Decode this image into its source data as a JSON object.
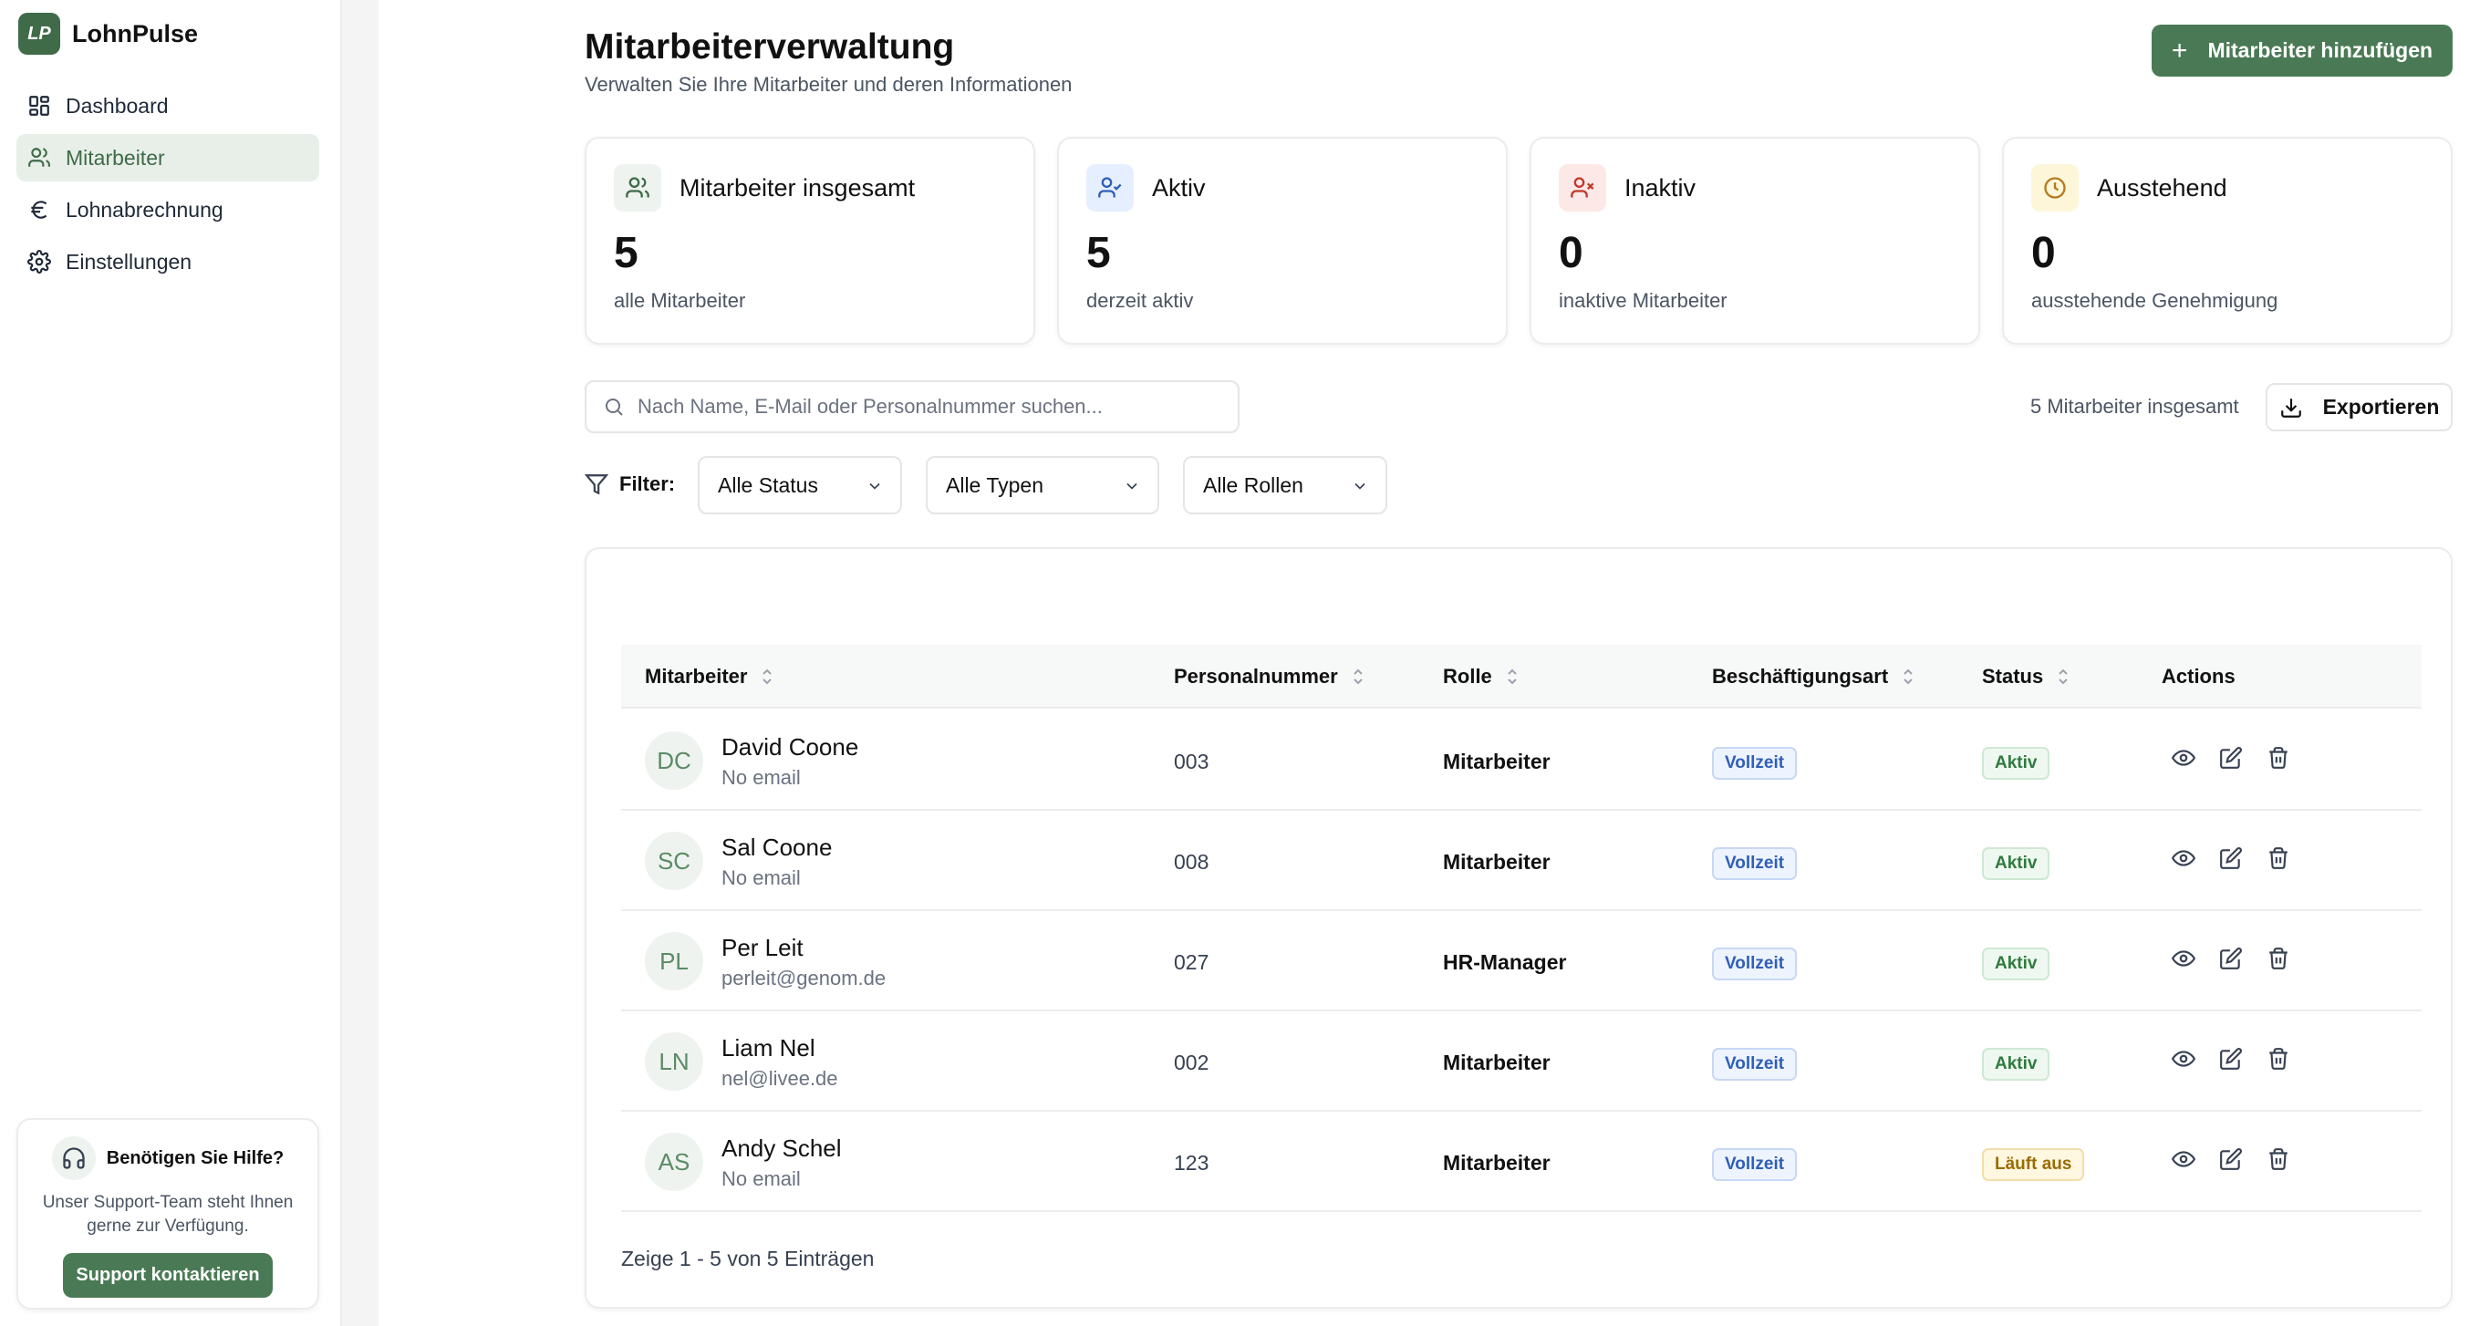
{
  "app": {
    "logo_text": "LP",
    "name": "LohnPulse"
  },
  "sidebar": {
    "items": [
      {
        "label": "Dashboard",
        "icon": "dashboard-icon",
        "active": false
      },
      {
        "label": "Mitarbeiter",
        "icon": "users-icon",
        "active": true
      },
      {
        "label": "Lohnabrechnung",
        "icon": "euro-icon",
        "active": false
      },
      {
        "label": "Einstellungen",
        "icon": "gear-icon",
        "active": false
      }
    ],
    "help": {
      "title": "Benötigen Sie Hilfe?",
      "text": "Unser Support-Team steht Ihnen gerne zur Verfügung.",
      "button": "Support kontaktieren"
    }
  },
  "header": {
    "title": "Mitarbeiterverwaltung",
    "subtitle": "Verwalten Sie Ihre Mitarbeiter und deren Informationen",
    "add_button": "Mitarbeiter hinzufügen"
  },
  "stats": [
    {
      "label": "Mitarbeiter insgesamt",
      "value": "5",
      "desc": "alle Mitarbeiter",
      "icon": "users-icon",
      "color": "#3f6b48",
      "bg": "#eef3ef"
    },
    {
      "label": "Aktiv",
      "value": "5",
      "desc": "derzeit aktiv",
      "icon": "user-check-icon",
      "color": "#2f5fb8",
      "bg": "#e6efff"
    },
    {
      "label": "Inaktiv",
      "value": "0",
      "desc": "inaktive Mitarbeiter",
      "icon": "user-x-icon",
      "color": "#c0392b",
      "bg": "#fde8e8"
    },
    {
      "label": "Ausstehend",
      "value": "0",
      "desc": "ausstehende Genehmigung",
      "icon": "clock-icon",
      "color": "#b7791f",
      "bg": "#fdf6d8"
    }
  ],
  "search": {
    "placeholder": "Nach Name, E-Mail oder Personalnummer suchen...",
    "value": ""
  },
  "total_count": "5 Mitarbeiter insgesamt",
  "export_button": "Exportieren",
  "filters": {
    "label": "Filter:",
    "status": "Alle Status",
    "type": "Alle Typen",
    "role": "Alle Rollen"
  },
  "table": {
    "columns": [
      "Mitarbeiter",
      "Personalnummer",
      "Rolle",
      "Beschäftigungsart",
      "Status",
      "Actions"
    ],
    "rows": [
      {
        "initials": "DC",
        "name": "David Coone",
        "email": "No email",
        "number": "003",
        "role": "Mitarbeiter",
        "type": "Vollzeit",
        "status": "Aktiv",
        "status_kind": "active"
      },
      {
        "initials": "SC",
        "name": "Sal Coone",
        "email": "No email",
        "number": "008",
        "role": "Mitarbeiter",
        "type": "Vollzeit",
        "status": "Aktiv",
        "status_kind": "active"
      },
      {
        "initials": "PL",
        "name": "Per Leit",
        "email": "perleit@genom.de",
        "number": "027",
        "role": "HR-Manager",
        "type": "Vollzeit",
        "status": "Aktiv",
        "status_kind": "active"
      },
      {
        "initials": "LN",
        "name": "Liam Nel",
        "email": "nel@livee.de",
        "number": "002",
        "role": "Mitarbeiter",
        "type": "Vollzeit",
        "status": "Aktiv",
        "status_kind": "active"
      },
      {
        "initials": "AS",
        "name": "Andy Schel",
        "email": "No email",
        "number": "123",
        "role": "Mitarbeiter",
        "type": "Vollzeit",
        "status": "Läuft aus",
        "status_kind": "expiring"
      }
    ],
    "pagination": "Zeige 1 - 5 von 5 Einträgen"
  }
}
